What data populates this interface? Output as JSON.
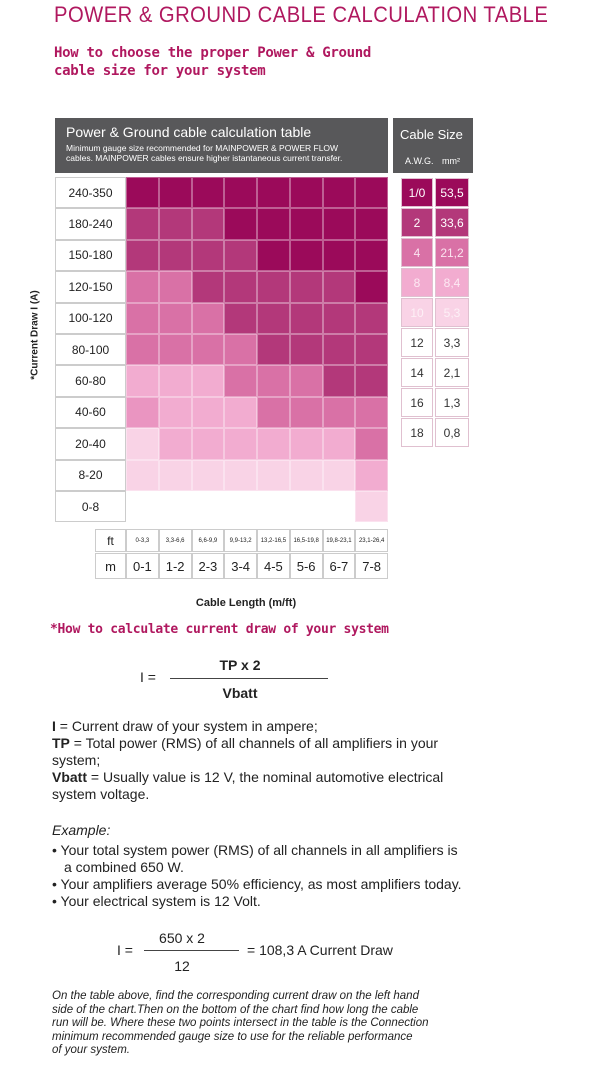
{
  "header": {
    "title": "POWER & GROUND CABLE CALCULATION TABLE",
    "subtitle": [
      "How to choose the proper Power & Ground",
      "cable size for your system"
    ]
  },
  "table": {
    "title": "Power & Ground cable calculation table",
    "note": [
      "Minimum gauge size recommended for MAINPOWER & POWER FLOW",
      "cables. MAINPOWER cables ensure higher istantaneous current transfer."
    ],
    "size_header": "Cable Size",
    "awg_header": "A.W.G.",
    "mm_header": "mm²",
    "y_label": "*Current Draw I (A)",
    "rows": [
      {
        "label": "240-350",
        "colors": [
          "#9b0a5a",
          "#9b0a5a",
          "#9b0a5a",
          "#9b0a5a",
          "#9b0a5a",
          "#9b0a5a",
          "#9b0a5a",
          "#9b0a5a"
        ]
      },
      {
        "label": "180-240",
        "colors": [
          "#b3387a",
          "#b3387a",
          "#b3387a",
          "#9b0a5a",
          "#9b0a5a",
          "#9b0a5a",
          "#9b0a5a",
          "#9b0a5a"
        ]
      },
      {
        "label": "150-180",
        "colors": [
          "#b3387a",
          "#b3387a",
          "#b3387a",
          "#b3387a",
          "#9b0a5a",
          "#9b0a5a",
          "#9b0a5a",
          "#9b0a5a"
        ]
      },
      {
        "label": "120-150",
        "colors": [
          "#d971a6",
          "#d971a6",
          "#b3387a",
          "#b3387a",
          "#b3387a",
          "#b3387a",
          "#b3387a",
          "#9b0a5a"
        ]
      },
      {
        "label": "100-120",
        "colors": [
          "#d971a6",
          "#d971a6",
          "#d971a6",
          "#b3387a",
          "#b3387a",
          "#b3387a",
          "#b3387a",
          "#b3387a"
        ]
      },
      {
        "label": "80-100",
        "colors": [
          "#d971a6",
          "#d971a6",
          "#d971a6",
          "#d971a6",
          "#b3387a",
          "#b3387a",
          "#b3387a",
          "#b3387a"
        ]
      },
      {
        "label": "60-80",
        "colors": [
          "#f2acd0",
          "#f2acd0",
          "#f2acd0",
          "#d971a6",
          "#d971a6",
          "#d971a6",
          "#b3387a",
          "#b3387a"
        ]
      },
      {
        "label": "40-60",
        "colors": [
          "#ea95c1",
          "#f2acd0",
          "#f2acd0",
          "#f2acd0",
          "#d971a6",
          "#d971a6",
          "#d971a6",
          "#d971a6"
        ]
      },
      {
        "label": "20-40",
        "colors": [
          "#f9d3e6",
          "#f2acd0",
          "#f2acd0",
          "#f2acd0",
          "#f2acd0",
          "#f2acd0",
          "#f2acd0",
          "#d971a6"
        ]
      },
      {
        "label": "8-20",
        "colors": [
          "#f9d3e6",
          "#f9d3e6",
          "#f9d3e6",
          "#f9d3e6",
          "#f9d3e6",
          "#f9d3e6",
          "#f9d3e6",
          "#f2acd0"
        ]
      },
      {
        "label": "0-8",
        "colors": [
          "#ffffff",
          "#ffffff",
          "#ffffff",
          "#ffffff",
          "#ffffff",
          "#ffffff",
          "#ffffff",
          "#f9d3e6"
        ]
      }
    ],
    "sizes": [
      {
        "awg": "1/0",
        "mm": "53,5",
        "color": "#9b0a5a",
        "text_color": "#ffffff"
      },
      {
        "awg": "2",
        "mm": "33,6",
        "color": "#b3387a",
        "text_color": "#ffffff"
      },
      {
        "awg": "4",
        "mm": "21,2",
        "color": "#d971a6",
        "text_color": "#fbe3ef"
      },
      {
        "awg": "8",
        "mm": "8,4",
        "color": "#f2acd0",
        "text_color": "#fde9f3"
      },
      {
        "awg": "10",
        "mm": "5,3",
        "color": "#f9d3e6",
        "text_color": "#fdf0f6"
      },
      {
        "awg": "12",
        "mm": "3,3",
        "color": "#ffffff",
        "text_color": "#333333"
      },
      {
        "awg": "14",
        "mm": "2,1",
        "color": "#ffffff",
        "text_color": "#333333"
      },
      {
        "awg": "16",
        "mm": "1,3",
        "color": "#ffffff",
        "text_color": "#333333"
      },
      {
        "awg": "18",
        "mm": "0,8",
        "color": "#ffffff",
        "text_color": "#333333"
      }
    ],
    "ft_label": "ft",
    "ft": [
      "0-3,3",
      "3,3-6,6",
      "6,6-9,9",
      "9,9-13,2",
      "13,2-16,5",
      "16,5-19,8",
      "19,8-23,1",
      "23,1-26,4"
    ],
    "m_label": "m",
    "m": [
      "0-1",
      "1-2",
      "2-3",
      "3-4",
      "4-5",
      "5-6",
      "6-7",
      "7-8"
    ],
    "x_label": "Cable Length (m/ft)"
  },
  "calc": {
    "heading": "*How to calculate current draw of your system",
    "formula": {
      "lhs": "I =",
      "numerator": "TP x 2",
      "denominator": "Vbatt"
    },
    "definitions": [
      {
        "term": "I",
        "text": " = Current draw of your system in ampere;"
      },
      {
        "term": "TP",
        "text": " = Total power (RMS) of all channels of all amplifiers in your system;"
      },
      {
        "term": "Vbatt",
        "text": " = Usually value is 12 V, the nominal automotive electrical system voltage."
      }
    ],
    "example_label": "Example:",
    "bullets": [
      "• Your total system power (RMS) of all channels in all amplifiers is a combined 650 W.",
      "• Your amplifiers average 50% efficiency, as most amplifiers today.",
      "• Your electrical system is 12 Volt."
    ],
    "example": {
      "lhs": "I =",
      "numerator": "650 x 2",
      "denominator": "12",
      "result": "= 108,3 A Current Draw"
    },
    "footer": [
      "On the table above, find the corresponding current draw on the left hand",
      "side of the chart.Then on the bottom of the chart find how long the cable",
      "run will be. Where these two points intersect in the table is the Connection",
      "minimum recommended gauge size to use for the reliable performance",
      "of your system."
    ]
  }
}
